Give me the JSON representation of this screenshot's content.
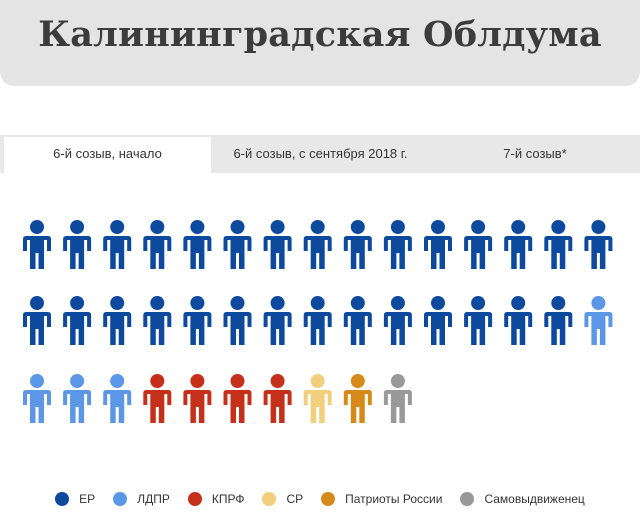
{
  "header": {
    "title": "Калининградская Облдума"
  },
  "tabs": [
    {
      "label": "6-й созыв, начало",
      "active": true
    },
    {
      "label": "6-й созыв, с сентября 2018 г.",
      "active": false
    },
    {
      "label": "7-й созыв*",
      "active": false
    }
  ],
  "chart_data": {
    "type": "pictogram",
    "unit": "seat",
    "series": [
      {
        "name": "ЕР",
        "value": 29,
        "color": "#0d4a9e"
      },
      {
        "name": "ЛДПР",
        "value": 4,
        "color": "#5b97e6"
      },
      {
        "name": "КПРФ",
        "value": 4,
        "color": "#c5301a"
      },
      {
        "name": "СР",
        "value": 1,
        "color": "#f2cf7d"
      },
      {
        "name": "Патриоты России",
        "value": 1,
        "color": "#d68a1c"
      },
      {
        "name": "Самовыдвиженец",
        "value": 1,
        "color": "#999999"
      }
    ],
    "per_row": 15,
    "legend_position": "bottom-center"
  }
}
